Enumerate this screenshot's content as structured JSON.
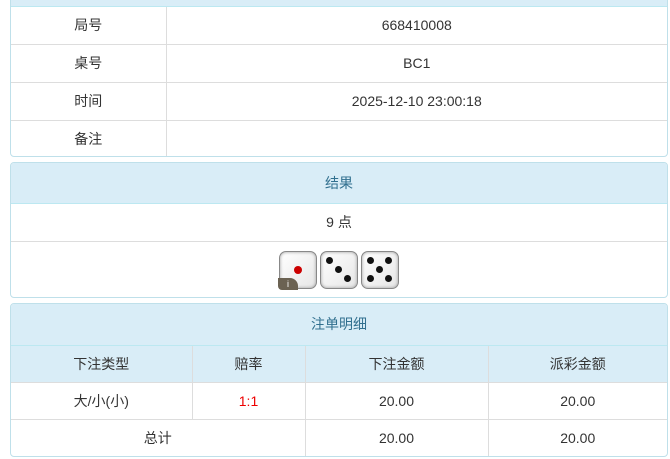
{
  "info": {
    "rows": [
      {
        "label": "局号",
        "value": "668410008"
      },
      {
        "label": "桌号",
        "value": "BC1"
      },
      {
        "label": "时间",
        "value": "2025-12-10 23:00:18"
      },
      {
        "label": "备注",
        "value": ""
      }
    ]
  },
  "result": {
    "title": "结果",
    "points": "9 点",
    "dice": [
      1,
      3,
      5
    ],
    "badge": "i"
  },
  "bets": {
    "title": "注单明细",
    "headers": [
      "下注类型",
      "赔率",
      "下注金额",
      "派彩金额"
    ],
    "rows": [
      {
        "type": "大/小(小)",
        "odds": "1:1",
        "amount": "20.00",
        "payout": "20.00"
      }
    ],
    "total": {
      "label": "总计",
      "amount": "20.00",
      "payout": "20.00"
    },
    "odds_color": "#ee0000"
  }
}
